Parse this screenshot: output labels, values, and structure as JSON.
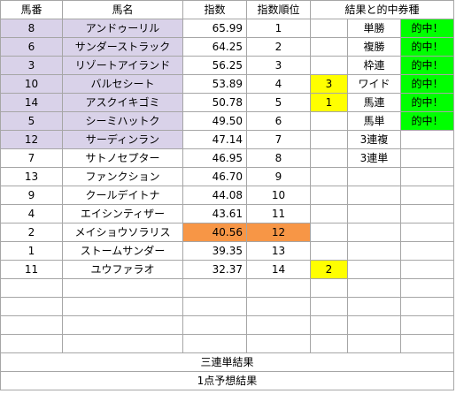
{
  "colors": {
    "top_horse_row": "#d9d2e9",
    "hit_cell": "#00ff00",
    "highlight_yellow": "#ffff00",
    "highlight_orange": "#f79646",
    "grid": "#a6a6a6"
  },
  "headers": {
    "horse_num": "馬番",
    "horse_name": "馬名",
    "index": "指数",
    "index_rank": "指数順位",
    "result_and_hit": "結果と的中券種"
  },
  "rows": [
    {
      "num": "8",
      "name": "アンドゥーリル",
      "index": "65.99",
      "rank": "1",
      "marker": "",
      "bet": "単勝",
      "hit": "的中！"
    },
    {
      "num": "6",
      "name": "サンダーストラック",
      "index": "64.25",
      "rank": "2",
      "marker": "",
      "bet": "複勝",
      "hit": "的中！"
    },
    {
      "num": "3",
      "name": "リゾートアイランド",
      "index": "56.25",
      "rank": "3",
      "marker": "",
      "bet": "枠連",
      "hit": "的中！"
    },
    {
      "num": "10",
      "name": "バルセシート",
      "index": "53.89",
      "rank": "4",
      "marker": "3",
      "bet": "ワイド",
      "hit": "的中！"
    },
    {
      "num": "14",
      "name": "アスクイキゴミ",
      "index": "50.78",
      "rank": "5",
      "marker": "1",
      "bet": "馬連",
      "hit": "的中！"
    },
    {
      "num": "5",
      "name": "シーミハットク",
      "index": "49.50",
      "rank": "6",
      "marker": "",
      "bet": "馬単",
      "hit": "的中！"
    },
    {
      "num": "12",
      "name": "サーディンラン",
      "index": "47.14",
      "rank": "7",
      "marker": "",
      "bet": "3連複",
      "hit": ""
    },
    {
      "num": "7",
      "name": "サトノセプター",
      "index": "46.95",
      "rank": "8",
      "marker": "",
      "bet": "3連単",
      "hit": ""
    },
    {
      "num": "13",
      "name": "ファンクション",
      "index": "46.70",
      "rank": "9",
      "marker": "",
      "bet": "",
      "hit": ""
    },
    {
      "num": "9",
      "name": "クールデイトナ",
      "index": "44.08",
      "rank": "10",
      "marker": "",
      "bet": "",
      "hit": ""
    },
    {
      "num": "4",
      "name": "エイシンティザー",
      "index": "43.61",
      "rank": "11",
      "marker": "",
      "bet": "",
      "hit": ""
    },
    {
      "num": "2",
      "name": "メイショウソラリス",
      "index": "40.56",
      "rank": "12",
      "marker": "",
      "bet": "",
      "hit": ""
    },
    {
      "num": "1",
      "name": "ストームサンダー",
      "index": "39.35",
      "rank": "13",
      "marker": "",
      "bet": "",
      "hit": ""
    },
    {
      "num": "11",
      "name": "ユウファラオ",
      "index": "32.37",
      "rank": "14",
      "marker": "2",
      "bet": "",
      "hit": ""
    }
  ],
  "footer": {
    "trifecta_result": "三連単結果",
    "one_point_prediction": "1点予想結果"
  }
}
